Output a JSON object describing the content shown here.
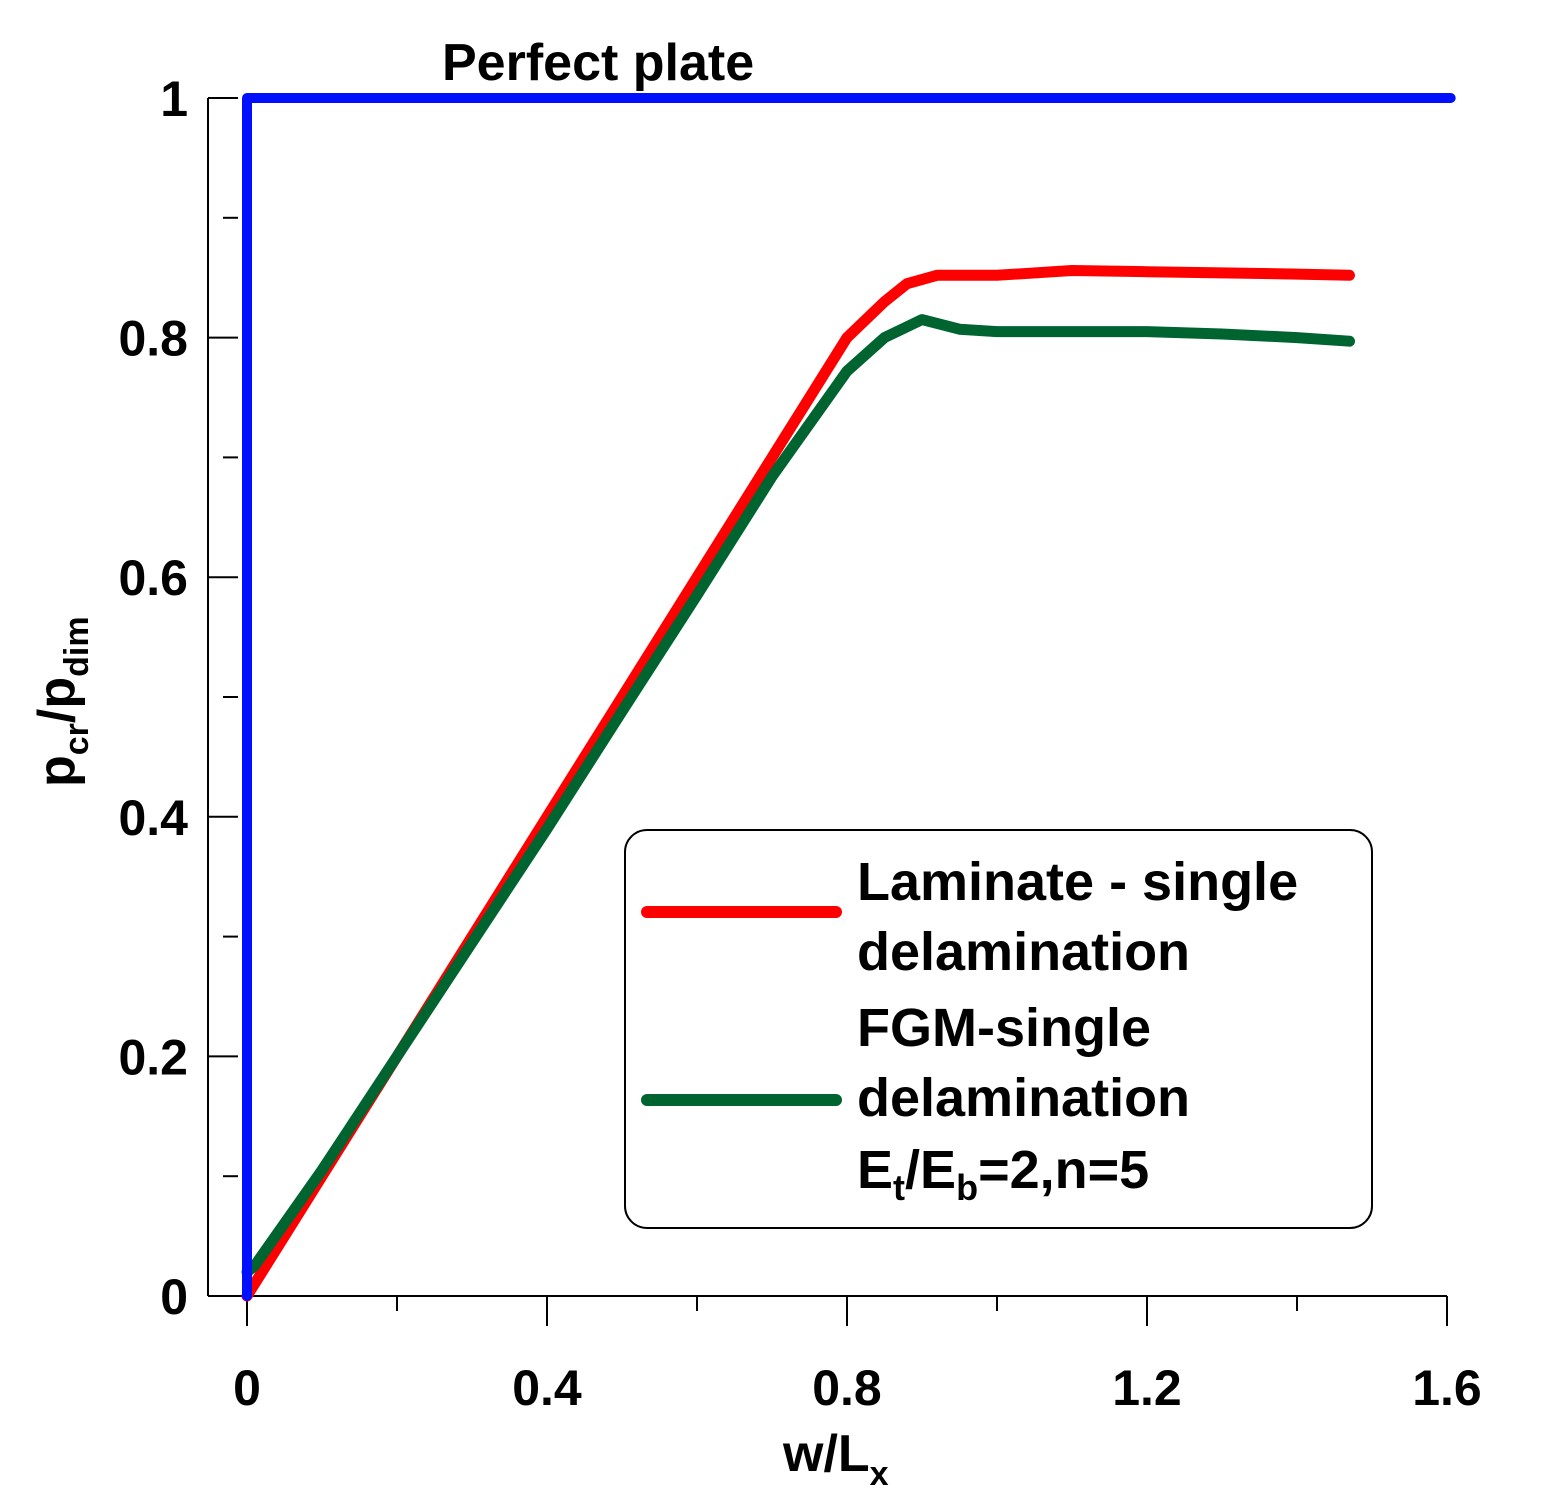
{
  "chart_data": {
    "type": "line",
    "title": "",
    "xlabel": "w/L",
    "xlabel_sub": "x",
    "ylabel_parts": {
      "p1": "p",
      "sub1": "cr",
      "slash": "/",
      "p2": "p",
      "sub2": "dim"
    },
    "xlim": [
      0,
      1.6
    ],
    "ylim": [
      0,
      1
    ],
    "xticks": [
      0,
      0.4,
      0.8,
      1.2,
      1.6
    ],
    "xtick_labels": [
      "0",
      "0.4",
      "0.8",
      "1.2",
      "1.6"
    ],
    "yticks": [
      0,
      0.2,
      0.4,
      0.6,
      0.8,
      1
    ],
    "ytick_labels": [
      "0",
      "0.2",
      "0.4",
      "0.6",
      "0.8",
      "1"
    ],
    "grid": false,
    "annotation": "Perfect plate",
    "legend_position": "bottom-right",
    "series": [
      {
        "name": "Perfect plate",
        "color": "#0010ff",
        "x": [
          0,
          0,
          1.605
        ],
        "y": [
          0,
          1.0,
          1.0
        ],
        "in_legend": false
      },
      {
        "name": "Laminate - single delamination",
        "legend_lines": [
          "Laminate - single",
          "delamination"
        ],
        "color": "#ff0000",
        "x": [
          0.0,
          0.1,
          0.2,
          0.3,
          0.4,
          0.5,
          0.6,
          0.7,
          0.8,
          0.85,
          0.88,
          0.92,
          1.0,
          1.1,
          1.2,
          1.3,
          1.4,
          1.47
        ],
        "y": [
          0.0,
          0.1,
          0.2,
          0.3,
          0.4,
          0.5,
          0.6,
          0.7,
          0.8,
          0.83,
          0.845,
          0.852,
          0.852,
          0.856,
          0.855,
          0.854,
          0.853,
          0.852
        ]
      },
      {
        "name": "FGM-single delamination Et/Eb=2,n=5",
        "legend_lines": [
          "FGM-single",
          "delamination"
        ],
        "legend_param": {
          "e1": "E",
          "s1": "t",
          "slash": "/",
          "e2": "E",
          "s2": "b",
          "rest": "=2,n=5"
        },
        "color": "#006430",
        "x": [
          0.0,
          0.01,
          0.1,
          0.2,
          0.3,
          0.4,
          0.5,
          0.6,
          0.7,
          0.8,
          0.85,
          0.9,
          0.95,
          1.0,
          1.1,
          1.2,
          1.3,
          1.4,
          1.47
        ],
        "y": [
          0.02,
          0.025,
          0.105,
          0.2,
          0.295,
          0.39,
          0.488,
          0.585,
          0.684,
          0.772,
          0.8,
          0.815,
          0.807,
          0.805,
          0.805,
          0.805,
          0.803,
          0.8,
          0.797
        ]
      }
    ]
  }
}
